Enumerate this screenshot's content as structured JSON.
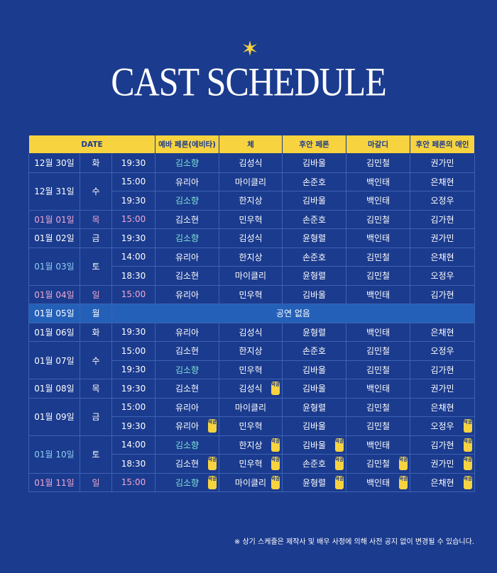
{
  "header": {
    "title": "CAST SCHEDULE"
  },
  "table": {
    "columns": [
      "DATE",
      "예바 페론(에비타)",
      "체",
      "후안 페론",
      "마갈디",
      "후안 페론의 애인"
    ],
    "groups": [
      {
        "date": "12월 30일",
        "day": "화",
        "shows": [
          {
            "time": "19:30",
            "cast": [
              {
                "name": "김소향",
                "color": "#7fe3d4"
              },
              {
                "name": "김성식"
              },
              {
                "name": "김바울"
              },
              {
                "name": "김민철"
              },
              {
                "name": "권가민"
              }
            ]
          }
        ]
      },
      {
        "date": "12월 31일",
        "day": "수",
        "shows": [
          {
            "time": "15:00",
            "cast": [
              {
                "name": "유리아"
              },
              {
                "name": "마이클리"
              },
              {
                "name": "손준호"
              },
              {
                "name": "백인태"
              },
              {
                "name": "은채현"
              }
            ]
          },
          {
            "time": "19:30",
            "cast": [
              {
                "name": "김소향",
                "color": "#7fe3d4"
              },
              {
                "name": "한지상"
              },
              {
                "name": "김바울"
              },
              {
                "name": "백인태"
              },
              {
                "name": "오정우"
              }
            ]
          }
        ]
      },
      {
        "date": "01월 01일",
        "day": "목",
        "color": "#f2a8d2",
        "shows": [
          {
            "time": "15:00",
            "cast": [
              {
                "name": "김소현"
              },
              {
                "name": "민우혁"
              },
              {
                "name": "손준호"
              },
              {
                "name": "김민철"
              },
              {
                "name": "김가현"
              }
            ]
          }
        ]
      },
      {
        "date": "01월 02일",
        "day": "금",
        "shows": [
          {
            "time": "19:30",
            "cast": [
              {
                "name": "김소향",
                "color": "#7fe3d4"
              },
              {
                "name": "김성식"
              },
              {
                "name": "윤형렬"
              },
              {
                "name": "백인태"
              },
              {
                "name": "권가민"
              }
            ]
          }
        ]
      },
      {
        "date": "01월 03일",
        "day": "토",
        "date_color": "#8fcdf2",
        "shows": [
          {
            "time": "14:00",
            "cast": [
              {
                "name": "유리아"
              },
              {
                "name": "한지상"
              },
              {
                "name": "손준호"
              },
              {
                "name": "김민철"
              },
              {
                "name": "은채현"
              }
            ]
          },
          {
            "time": "18:30",
            "cast": [
              {
                "name": "김소현"
              },
              {
                "name": "마이클리"
              },
              {
                "name": "윤형렬"
              },
              {
                "name": "김민철"
              },
              {
                "name": "오정우"
              }
            ]
          }
        ]
      },
      {
        "date": "01월 04일",
        "day": "일",
        "color": "#f2a8d2",
        "shows": [
          {
            "time": "15:00",
            "cast": [
              {
                "name": "유리아"
              },
              {
                "name": "민우혁"
              },
              {
                "name": "김바울"
              },
              {
                "name": "백인태"
              },
              {
                "name": "김가현"
              }
            ]
          }
        ]
      },
      {
        "date": "01월 05일",
        "day": "월",
        "note": "공연 없음",
        "shows": []
      },
      {
        "date": "01월 06일",
        "day": "화",
        "shows": [
          {
            "time": "19:30",
            "cast": [
              {
                "name": "유리아"
              },
              {
                "name": "김성식"
              },
              {
                "name": "윤형렬"
              },
              {
                "name": "백인태"
              },
              {
                "name": "은채현"
              }
            ]
          }
        ]
      },
      {
        "date": "01월 07일",
        "day": "수",
        "shows": [
          {
            "time": "15:00",
            "cast": [
              {
                "name": "김소현"
              },
              {
                "name": "한지상"
              },
              {
                "name": "손준호"
              },
              {
                "name": "김민철"
              },
              {
                "name": "오정우"
              }
            ]
          },
          {
            "time": "19:30",
            "cast": [
              {
                "name": "김소향",
                "color": "#7fe3d4"
              },
              {
                "name": "민우혁"
              },
              {
                "name": "김바울"
              },
              {
                "name": "김민철"
              },
              {
                "name": "김가현"
              }
            ]
          }
        ]
      },
      {
        "date": "01월 08일",
        "day": "목",
        "shows": [
          {
            "time": "19:30",
            "cast": [
              {
                "name": "김소현"
              },
              {
                "name": "김성식",
                "badge": "막공"
              },
              {
                "name": "김바울"
              },
              {
                "name": "백인태"
              },
              {
                "name": "권가민"
              }
            ]
          }
        ]
      },
      {
        "date": "01월 09일",
        "day": "금",
        "shows": [
          {
            "time": "15:00",
            "cast": [
              {
                "name": "유리아"
              },
              {
                "name": "마이클리"
              },
              {
                "name": "윤형렬"
              },
              {
                "name": "김민철"
              },
              {
                "name": "은채현"
              }
            ]
          },
          {
            "time": "19:30",
            "cast": [
              {
                "name": "유리아",
                "badge": "막공"
              },
              {
                "name": "민우혁"
              },
              {
                "name": "김바울"
              },
              {
                "name": "김민철"
              },
              {
                "name": "오정우",
                "badge": "막공"
              }
            ]
          }
        ]
      },
      {
        "date": "01월 10일",
        "day": "토",
        "date_color": "#8fcdf2",
        "shows": [
          {
            "time": "14:00",
            "cast": [
              {
                "name": "김소향",
                "color": "#7fe3d4"
              },
              {
                "name": "한지상",
                "badge": "막공"
              },
              {
                "name": "김바울",
                "badge": "막공"
              },
              {
                "name": "백인태"
              },
              {
                "name": "김가현",
                "badge": "막공"
              }
            ]
          },
          {
            "time": "18:30",
            "cast": [
              {
                "name": "김소현",
                "badge": "막공"
              },
              {
                "name": "민우혁",
                "badge": "막공"
              },
              {
                "name": "손준호",
                "badge": "막공"
              },
              {
                "name": "김민철",
                "badge": "막공"
              },
              {
                "name": "권가민",
                "badge": "막공"
              }
            ]
          }
        ]
      },
      {
        "date": "01월 11일",
        "day": "일",
        "color": "#f2a8d2",
        "shows": [
          {
            "time": "15:00",
            "cast": [
              {
                "name": "김소향",
                "color": "#7fe3d4",
                "badge": "막공"
              },
              {
                "name": "마이클리",
                "badge": "막공"
              },
              {
                "name": "윤형렬",
                "badge": "막공"
              },
              {
                "name": "백인태",
                "badge": "막공"
              },
              {
                "name": "은채현",
                "badge": "막공"
              }
            ]
          }
        ]
      }
    ]
  },
  "footer": {
    "note": "※ 상기 스케줄은 제작사 및 배우 사정에 의해 사전 공지 없이 변경될 수 있습니다."
  }
}
